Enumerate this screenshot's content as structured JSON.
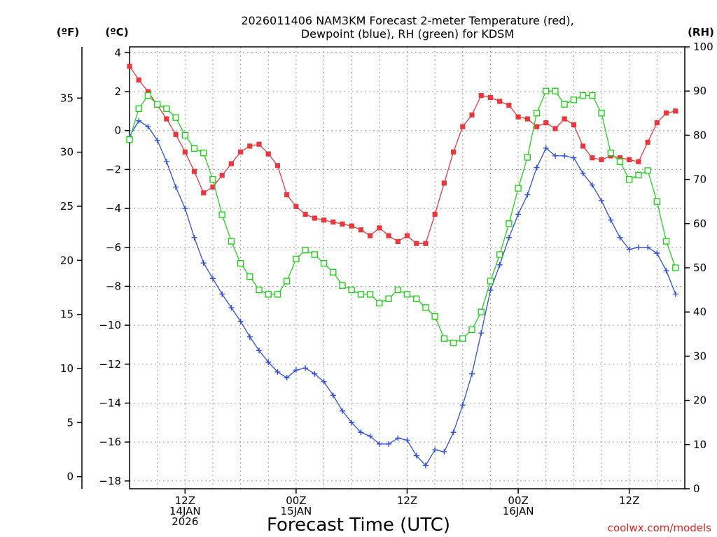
{
  "chart_data": {
    "type": "line",
    "title_line1": "2026011406 NAM3KM Forecast 2-meter Temperature (red),",
    "title_line2": "Dewpoint (blue), RH (green) for KDSM",
    "xlabel": "Forecast Time (UTC)",
    "credit": "coolwx.com/models",
    "units": {
      "fahrenheit": "(ºF)",
      "celsius": "(ºC)",
      "rh": "(RH)"
    },
    "x_range_hours": [
      0,
      60
    ],
    "celsius_axis": {
      "range": [
        -18.4,
        4.3
      ],
      "ticks": [
        4,
        2,
        0,
        -2,
        -4,
        -6,
        -8,
        -10,
        -12,
        -14,
        -16,
        -18
      ]
    },
    "fahrenheit_axis": {
      "ticks": [
        35,
        30,
        25,
        20,
        15,
        10,
        5,
        0
      ]
    },
    "rh_axis": {
      "range": [
        0,
        100
      ],
      "ticks": [
        100,
        90,
        80,
        70,
        60,
        50,
        40,
        30,
        20,
        10,
        0
      ]
    },
    "x_ticks": [
      {
        "hour": 6,
        "lines": [
          "12Z",
          "14JAN",
          "2026"
        ]
      },
      {
        "hour": 18,
        "lines": [
          "00Z",
          "15JAN"
        ]
      },
      {
        "hour": 30,
        "lines": [
          "12Z"
        ]
      },
      {
        "hour": 42,
        "lines": [
          "00Z",
          "16JAN"
        ]
      },
      {
        "hour": 54,
        "lines": [
          "12Z"
        ]
      }
    ],
    "series": [
      {
        "name": "Temperature",
        "unit": "C",
        "color": "#e8383d",
        "marker": "filled-square",
        "values": [
          3.3,
          2.6,
          2.0,
          1.3,
          0.6,
          -0.2,
          -1.1,
          -2.1,
          -3.2,
          -2.9,
          -2.3,
          -1.7,
          -1.1,
          -0.8,
          -0.7,
          -1.2,
          -1.8,
          -3.3,
          -3.9,
          -4.3,
          -4.5,
          -4.6,
          -4.7,
          -4.8,
          -4.9,
          -5.1,
          -5.4,
          -5.0,
          -5.4,
          -5.7,
          -5.4,
          -5.8,
          -5.8,
          -4.3,
          -2.7,
          -1.1,
          0.2,
          0.8,
          1.8,
          1.7,
          1.5,
          1.3,
          0.7,
          0.6,
          0.2,
          0.4,
          0.1,
          0.6,
          0.3,
          -0.8,
          -1.4,
          -1.5,
          -1.3,
          -1.4,
          -1.5,
          -1.6,
          -0.6,
          0.4,
          0.9,
          1.0
        ]
      },
      {
        "name": "Dewpoint",
        "unit": "C",
        "color": "#2e4de0",
        "marker": "plus",
        "values": [
          -0.3,
          0.5,
          0.2,
          -0.5,
          -1.6,
          -2.9,
          -4.0,
          -5.5,
          -6.8,
          -7.6,
          -8.4,
          -9.1,
          -9.8,
          -10.6,
          -11.3,
          -11.9,
          -12.4,
          -12.7,
          -12.3,
          -12.2,
          -12.5,
          -12.9,
          -13.6,
          -14.4,
          -15.0,
          -15.5,
          -15.7,
          -16.1,
          -16.1,
          -15.8,
          -15.9,
          -16.7,
          -17.2,
          -16.4,
          -16.5,
          -15.5,
          -14.1,
          -12.5,
          -10.4,
          -8.2,
          -6.9,
          -5.5,
          -4.3,
          -3.3,
          -1.9,
          -0.9,
          -1.3,
          -1.3,
          -1.4,
          -2.2,
          -2.8,
          -3.6,
          -4.6,
          -5.5,
          -6.1,
          -6.0,
          -6.0,
          -6.3,
          -7.2,
          -8.4
        ]
      },
      {
        "name": "RH",
        "unit": "%",
        "color": "#22d01c",
        "marker": "open-square",
        "values": [
          79,
          86,
          89,
          87,
          86,
          84,
          80,
          77,
          76,
          70,
          62,
          56,
          51,
          48,
          45,
          44,
          44,
          47,
          52,
          54,
          53,
          51,
          49,
          46,
          45,
          44,
          44,
          42,
          43,
          45,
          44,
          43,
          41,
          39,
          34,
          33,
          34,
          36,
          40,
          47,
          53,
          60,
          68,
          75,
          85,
          90,
          90,
          87,
          88,
          89,
          89,
          85,
          76,
          74,
          70,
          71,
          72,
          65,
          56,
          50
        ]
      }
    ]
  }
}
